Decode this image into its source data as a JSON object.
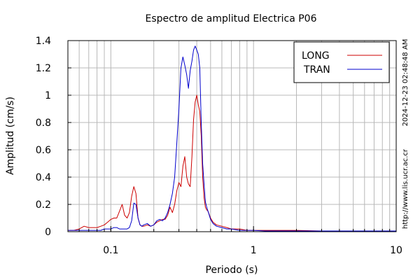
{
  "chart_data": {
    "type": "line",
    "title": "Espectro de amplitud Electrica P06",
    "xlabel": "Periodo (s)",
    "ylabel": "Amplitud (cm/s)",
    "x_scale": "log",
    "xlim": [
      0.05,
      10
    ],
    "ylim": [
      0,
      1.4
    ],
    "x_ticks": [
      {
        "value": 0.1,
        "label": "0.1"
      },
      {
        "value": 1,
        "label": "1"
      },
      {
        "value": 10,
        "label": "10"
      }
    ],
    "y_ticks": [
      {
        "value": 0,
        "label": "0"
      },
      {
        "value": 0.2,
        "label": "0.2"
      },
      {
        "value": 0.4,
        "label": "0.4"
      },
      {
        "value": 0.6,
        "label": "0.6"
      },
      {
        "value": 0.8,
        "label": "0.8"
      },
      {
        "value": 1.0,
        "label": "1"
      },
      {
        "value": 1.2,
        "label": "1.2"
      },
      {
        "value": 1.4,
        "label": "1.4"
      }
    ],
    "grid": true,
    "legend_position": "top-right",
    "series": [
      {
        "name": "LONG",
        "color": "#cc0000",
        "x": [
          0.05,
          0.055,
          0.06,
          0.065,
          0.07,
          0.075,
          0.08,
          0.085,
          0.09,
          0.095,
          0.1,
          0.105,
          0.11,
          0.115,
          0.12,
          0.125,
          0.13,
          0.135,
          0.14,
          0.145,
          0.15,
          0.155,
          0.16,
          0.165,
          0.17,
          0.18,
          0.19,
          0.2,
          0.21,
          0.22,
          0.23,
          0.24,
          0.25,
          0.26,
          0.27,
          0.28,
          0.29,
          0.3,
          0.31,
          0.32,
          0.33,
          0.34,
          0.35,
          0.36,
          0.37,
          0.38,
          0.39,
          0.4,
          0.41,
          0.42,
          0.43,
          0.44,
          0.45,
          0.46,
          0.47,
          0.48,
          0.5,
          0.52,
          0.55,
          0.6,
          0.65,
          0.7,
          0.8,
          0.9,
          1.0,
          1.2,
          1.5,
          1.8,
          2.0,
          3.0,
          5.0,
          7.0,
          10.0
        ],
        "y": [
          0.01,
          0.01,
          0.02,
          0.04,
          0.03,
          0.03,
          0.03,
          0.04,
          0.05,
          0.07,
          0.09,
          0.1,
          0.1,
          0.15,
          0.2,
          0.12,
          0.1,
          0.14,
          0.26,
          0.33,
          0.28,
          0.1,
          0.05,
          0.04,
          0.04,
          0.05,
          0.04,
          0.05,
          0.07,
          0.08,
          0.09,
          0.09,
          0.12,
          0.18,
          0.14,
          0.2,
          0.3,
          0.36,
          0.33,
          0.48,
          0.55,
          0.4,
          0.35,
          0.33,
          0.55,
          0.82,
          0.95,
          1.0,
          0.93,
          0.88,
          0.7,
          0.4,
          0.25,
          0.18,
          0.16,
          0.15,
          0.1,
          0.07,
          0.05,
          0.04,
          0.03,
          0.02,
          0.02,
          0.01,
          0.01,
          0.01,
          0.01,
          0.01,
          0.01,
          0.005,
          0.005,
          0.005,
          0.005
        ]
      },
      {
        "name": "TRAN",
        "color": "#0000cc",
        "x": [
          0.05,
          0.055,
          0.06,
          0.065,
          0.07,
          0.075,
          0.08,
          0.085,
          0.09,
          0.095,
          0.1,
          0.105,
          0.11,
          0.115,
          0.12,
          0.125,
          0.13,
          0.135,
          0.14,
          0.145,
          0.15,
          0.155,
          0.16,
          0.165,
          0.17,
          0.18,
          0.19,
          0.2,
          0.21,
          0.22,
          0.23,
          0.24,
          0.25,
          0.26,
          0.27,
          0.28,
          0.29,
          0.3,
          0.31,
          0.32,
          0.33,
          0.34,
          0.35,
          0.36,
          0.37,
          0.38,
          0.39,
          0.4,
          0.41,
          0.42,
          0.43,
          0.44,
          0.45,
          0.46,
          0.47,
          0.48,
          0.5,
          0.52,
          0.55,
          0.6,
          0.65,
          0.7,
          0.8,
          0.9,
          1.0,
          1.2,
          1.5,
          1.8,
          2.0,
          3.0,
          5.0,
          7.0,
          10.0
        ],
        "y": [
          0.01,
          0.01,
          0.01,
          0.01,
          0.01,
          0.01,
          0.01,
          0.01,
          0.02,
          0.02,
          0.02,
          0.03,
          0.03,
          0.02,
          0.02,
          0.02,
          0.02,
          0.03,
          0.08,
          0.21,
          0.2,
          0.1,
          0.05,
          0.04,
          0.05,
          0.06,
          0.04,
          0.05,
          0.08,
          0.09,
          0.08,
          0.1,
          0.14,
          0.2,
          0.28,
          0.4,
          0.65,
          0.9,
          1.2,
          1.28,
          1.22,
          1.15,
          1.05,
          1.18,
          1.25,
          1.33,
          1.36,
          1.33,
          1.3,
          1.2,
          0.8,
          0.5,
          0.35,
          0.22,
          0.18,
          0.15,
          0.09,
          0.06,
          0.04,
          0.03,
          0.02,
          0.02,
          0.01,
          0.01,
          0.01,
          0.005,
          0.005,
          0.005,
          0.005,
          0.005,
          0.005,
          0.005,
          0.005
        ]
      }
    ]
  },
  "side_labels": {
    "timestamp": "2024-12-23 02:48:48 AM",
    "url": "http://www.lis.ucr.ac.cr"
  }
}
